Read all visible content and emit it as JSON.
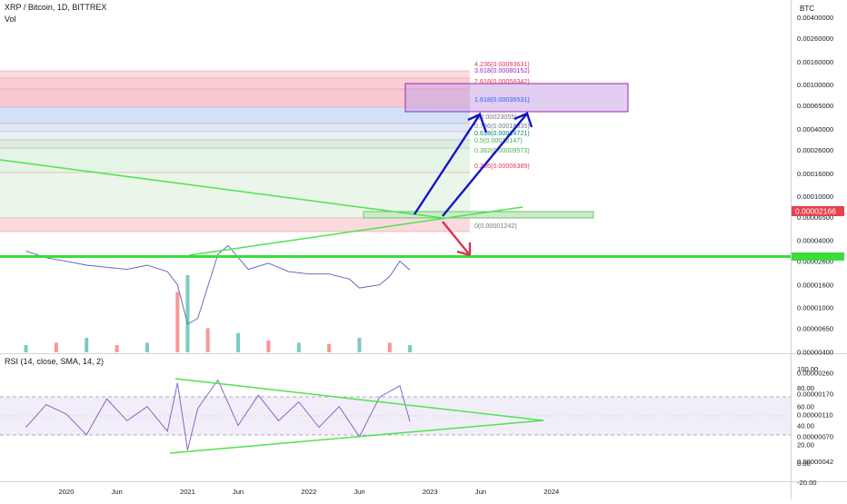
{
  "header": {
    "title": "XRP / Bitcoin, 1D, BITTREX",
    "vol_label": "Vol",
    "rsi_label": "RSI (14, close, SMA, 14, 2)"
  },
  "colors": {
    "price_line": "#5b5bb8",
    "trendline": "#4ee44e",
    "support": "#3bdc3b",
    "arrow_up": "#1515c8",
    "arrow_down": "#d2344f",
    "last_price_bg": "#e8424c",
    "rsi_line": "#7e57c2"
  },
  "chart_data": [
    {
      "type": "line",
      "title": "XRP / Bitcoin, 1D, BITTREX",
      "axis_unit": "BTC",
      "y_scale": "log",
      "x_ticks": [
        "2020",
        "Jun",
        "2021",
        "Jun",
        "2022",
        "Jun",
        "2023",
        "Jun",
        "2024"
      ],
      "y_ticks": [
        "0.00400000",
        "0.00260000",
        "0.00160000",
        "0.00100000",
        "0.00065000",
        "0.00040000",
        "0.00026000",
        "0.00016000",
        "0.00010000",
        "0.00006500",
        "0.00004000",
        "0.00002600",
        "0.00001600",
        "0.00001000",
        "0.00000650",
        "0.00000400",
        "0.00000260",
        "0.00000170",
        "0.00000110",
        "0.00000070",
        "0.00000042"
      ],
      "last_price": "0.00002166",
      "fib_levels": [
        {
          "ratio": "4.236",
          "label": "4.236(0.00093631)",
          "color": "#e83553"
        },
        {
          "ratio": "3.618",
          "label": "3.618(0.00080152)",
          "color": "#9c27b0"
        },
        {
          "ratio": "2.618",
          "label": "2.618(0.00058342)",
          "color": "#e83553"
        },
        {
          "ratio": "1.618",
          "label": "1.618(0.00036531)",
          "color": "#2962ff"
        },
        {
          "ratio": "1",
          "label": "1(0.00023055)",
          "color": "#787b86"
        },
        {
          "ratio": "0.786",
          "label": "0.786(0.00018335)",
          "color": "#787b86"
        },
        {
          "ratio": "0.618",
          "label": "0.618(0.00014721)",
          "color": "#00897b"
        },
        {
          "ratio": "0.5",
          "label": "0.5(0.00012147)",
          "color": "#4caf50"
        },
        {
          "ratio": "0.382",
          "label": "0.382(0.00009573)",
          "color": "#4caf50"
        },
        {
          "ratio": "0.236",
          "label": "0.236(0.00006389)",
          "color": "#e83553"
        },
        {
          "ratio": "0",
          "label": "0(0.00001242)",
          "color": "#787b86"
        }
      ],
      "series": [
        {
          "name": "XRP / Bitcoin",
          "x": [
            "2019-09",
            "2019-11",
            "2020-01",
            "2020-03",
            "2020-05",
            "2020-07",
            "2020-09",
            "2020-11",
            "2020-12",
            "2021-01",
            "2021-02",
            "2021-04",
            "2021-05",
            "2021-07",
            "2021-09",
            "2021-11",
            "2022-01",
            "2022-03",
            "2022-05",
            "2022-06",
            "2022-08",
            "2022-09",
            "2022-10",
            "2022-11"
          ],
          "values": [
            3.2e-05,
            2.8e-05,
            2.6e-05,
            2.4e-05,
            2.3e-05,
            2.2e-05,
            2.4e-05,
            2.1e-05,
            1.6e-05,
            7.1e-06,
            8e-06,
            3e-05,
            3.6e-05,
            2.2e-05,
            2.5e-05,
            2.1e-05,
            2e-05,
            2e-05,
            1.8e-05,
            1.5e-05,
            1.6e-05,
            1.9e-05,
            2.6e-05,
            2.17e-05
          ]
        }
      ]
    },
    {
      "type": "bar",
      "title": "Vol",
      "categories": [
        "2019-09",
        "2019-12",
        "2020-03",
        "2020-06",
        "2020-09",
        "2020-12",
        "2021-01",
        "2021-03",
        "2021-06",
        "2021-09",
        "2021-12",
        "2022-03",
        "2022-06",
        "2022-09",
        "2022-11"
      ],
      "values": [
        0.3,
        0.4,
        0.6,
        0.3,
        0.4,
        2.5,
        3.2,
        1.0,
        0.8,
        0.5,
        0.4,
        0.35,
        0.6,
        0.4,
        0.3
      ]
    },
    {
      "type": "line",
      "title": "RSI (14, close, SMA, 14, 2)",
      "y_ticks": [
        "100.00",
        "80.00",
        "60.00",
        "40.00",
        "20.00",
        "0.00",
        "-20.00"
      ],
      "band": [
        30,
        70
      ],
      "mid": 50,
      "series": [
        {
          "name": "RSI",
          "x": [
            "2019-09",
            "2019-11",
            "2020-01",
            "2020-03",
            "2020-05",
            "2020-07",
            "2020-09",
            "2020-11",
            "2020-12",
            "2021-01",
            "2021-02",
            "2021-04",
            "2021-06",
            "2021-08",
            "2021-10",
            "2021-12",
            "2022-02",
            "2022-04",
            "2022-06",
            "2022-08",
            "2022-09",
            "2022-10",
            "2022-11"
          ],
          "values": [
            38,
            62,
            52,
            30,
            68,
            45,
            60,
            34,
            85,
            14,
            58,
            88,
            40,
            72,
            45,
            65,
            38,
            60,
            28,
            70,
            76,
            82,
            44
          ]
        }
      ]
    }
  ]
}
